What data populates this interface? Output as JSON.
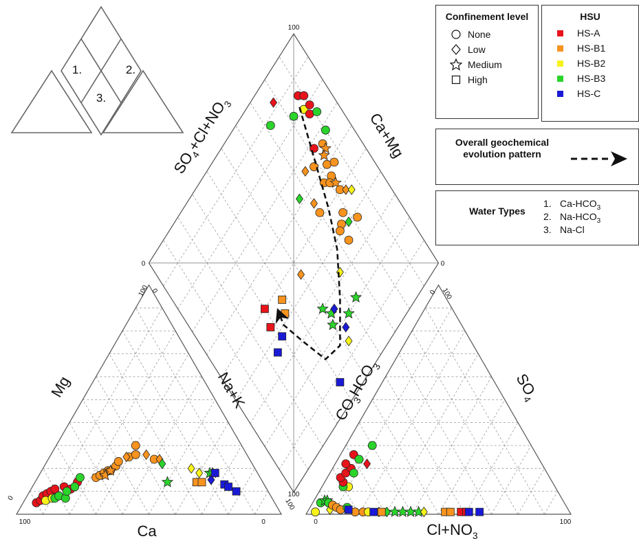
{
  "ternary_labels": {
    "cation_left": "Mg",
    "cation_bottom": "Ca",
    "cation_right": "Na+K",
    "anion_left": "CO3HCO3",
    "anion_bottom": "Cl+NO3",
    "anion_right": "SO4",
    "diamond_left": "SO4+Cl+NO3",
    "diamond_right": "Ca+Mg",
    "tick_100": "100",
    "tick_0": "0"
  },
  "legend": {
    "confinement": {
      "title": "Confinement level",
      "items": [
        {
          "label": "None",
          "marker": "circle"
        },
        {
          "label": "Low",
          "marker": "diamond"
        },
        {
          "label": "Medium",
          "marker": "star"
        },
        {
          "label": "High",
          "marker": "square"
        }
      ]
    },
    "hsu": {
      "title": "HSU",
      "items": [
        {
          "label": "HS-A",
          "color": "#e8141b"
        },
        {
          "label": "HS-B1",
          "color": "#f7931e"
        },
        {
          "label": "HS-B2",
          "color": "#f7f21a"
        },
        {
          "label": "HS-B3",
          "color": "#2bd42b"
        },
        {
          "label": "HS-C",
          "color": "#1a1ad6"
        }
      ]
    },
    "evolution": {
      "label": "Overall geochemical evolution pattern"
    },
    "water_types": {
      "title": "Water Types",
      "items": [
        {
          "num": "1.",
          "label": "Ca-HCO3"
        },
        {
          "num": "2.",
          "label": "Na-HCO3"
        },
        {
          "num": "3.",
          "label": "Na-Cl"
        }
      ]
    }
  },
  "inset_labels": [
    "1.",
    "2.",
    "3."
  ],
  "chart_data": {
    "type": "scatter",
    "subtype": "piper_diagram",
    "marker_colors": {
      "A": "#e8141b",
      "B1": "#f7931e",
      "B2": "#f7f21a",
      "B3": "#2bd42b",
      "C": "#1a1ad6"
    },
    "cation_points": [
      {
        "ca": 90,
        "na": 5,
        "hsu": "A",
        "m": "circle"
      },
      {
        "ca": 88,
        "na": 6,
        "hsu": "A",
        "m": "circle"
      },
      {
        "ca": 86,
        "na": 6,
        "hsu": "A",
        "m": "circle"
      },
      {
        "ca": 84,
        "na": 7,
        "hsu": "A",
        "m": "circle"
      },
      {
        "ca": 82,
        "na": 8,
        "hsu": "A",
        "m": "circle"
      },
      {
        "ca": 80,
        "na": 9,
        "hsu": "A",
        "m": "circle"
      },
      {
        "ca": 76,
        "na": 12,
        "hsu": "A",
        "m": "circle"
      },
      {
        "ca": 74,
        "na": 15,
        "hsu": "A",
        "m": "circle"
      },
      {
        "ca": 70,
        "na": 16,
        "hsu": "A",
        "m": "circle"
      },
      {
        "ca": 86,
        "na": 8,
        "hsu": "B2",
        "m": "circle"
      },
      {
        "ca": 83,
        "na": 10,
        "hsu": "B2",
        "m": "circle"
      },
      {
        "ca": 82,
        "na": 11,
        "hsu": "B3",
        "m": "circle"
      },
      {
        "ca": 80,
        "na": 12,
        "hsu": "B3",
        "m": "circle"
      },
      {
        "ca": 78,
        "na": 15,
        "hsu": "B3",
        "m": "circle"
      },
      {
        "ca": 76,
        "na": 14,
        "hsu": "B3",
        "m": "circle"
      },
      {
        "ca": 72,
        "na": 16,
        "hsu": "B3",
        "m": "circle"
      },
      {
        "ca": 68,
        "na": 16,
        "hsu": "B3",
        "m": "circle"
      },
      {
        "ca": 62,
        "na": 22,
        "hsu": "B1",
        "m": "circle"
      },
      {
        "ca": 60,
        "na": 23,
        "hsu": "B1",
        "m": "circle"
      },
      {
        "ca": 58,
        "na": 24,
        "hsu": "B1",
        "m": "circle"
      },
      {
        "ca": 56,
        "na": 25,
        "hsu": "B1",
        "m": "circle"
      },
      {
        "ca": 55,
        "na": 26,
        "hsu": "B1",
        "m": "circle"
      },
      {
        "ca": 52,
        "na": 27,
        "hsu": "B1",
        "m": "circle"
      },
      {
        "ca": 50,
        "na": 27,
        "hsu": "B1",
        "m": "circle"
      },
      {
        "ca": 45,
        "na": 30,
        "hsu": "B1",
        "m": "circle"
      },
      {
        "ca": 42,
        "na": 32,
        "hsu": "B1",
        "m": "circle"
      },
      {
        "ca": 40,
        "na": 30,
        "hsu": "B1",
        "m": "circle"
      },
      {
        "ca": 36,
        "na": 40,
        "hsu": "B1",
        "m": "circle"
      },
      {
        "ca": 58,
        "na": 25,
        "hsu": "B1",
        "m": "star"
      },
      {
        "ca": 55,
        "na": 26,
        "hsu": "B1",
        "m": "star"
      },
      {
        "ca": 46,
        "na": 29,
        "hsu": "B1",
        "m": "diamond"
      },
      {
        "ca": 38,
        "na": 36,
        "hsu": "B1",
        "m": "diamond"
      },
      {
        "ca": 34,
        "na": 42,
        "hsu": "B1",
        "m": "diamond"
      },
      {
        "ca": 36,
        "na": 50,
        "hsu": "B3",
        "m": "star"
      },
      {
        "ca": 34,
        "na": 44,
        "hsu": "B3",
        "m": "diamond"
      },
      {
        "ca": 24,
        "na": 56,
        "hsu": "B2",
        "m": "diamond"
      },
      {
        "ca": 22,
        "na": 60,
        "hsu": "B2",
        "m": "diamond"
      },
      {
        "ca": 25,
        "na": 61,
        "hsu": "B1",
        "m": "square"
      },
      {
        "ca": 23,
        "na": 63,
        "hsu": "B1",
        "m": "square"
      },
      {
        "ca": 18,
        "na": 64,
        "hsu": "B3",
        "m": "star"
      },
      {
        "ca": 17,
        "na": 65,
        "hsu": "B3",
        "m": "star"
      },
      {
        "ca": 19,
        "na": 66,
        "hsu": "C",
        "m": "diamond"
      },
      {
        "ca": 16,
        "na": 66,
        "hsu": "C",
        "m": "square"
      },
      {
        "ca": 15,
        "na": 72,
        "hsu": "C",
        "m": "square"
      },
      {
        "ca": 14,
        "na": 74,
        "hsu": "C",
        "m": "square"
      },
      {
        "ca": 12,
        "na": 78,
        "hsu": "C",
        "m": "square"
      }
    ],
    "anion_points": [
      {
        "cl": 8,
        "so4": 2,
        "hsu": "B2",
        "m": "diamond"
      },
      {
        "cl": 3,
        "so4": 1,
        "hsu": "B2",
        "m": "circle"
      },
      {
        "cl": 3,
        "so4": 5,
        "hsu": "B3",
        "m": "circle"
      },
      {
        "cl": 4,
        "so4": 6,
        "hsu": "B3",
        "m": "star"
      },
      {
        "cl": 5,
        "so4": 6,
        "hsu": "B3",
        "m": "star"
      },
      {
        "cl": 6,
        "so4": 5,
        "hsu": "B3",
        "m": "circle"
      },
      {
        "cl": 8,
        "so4": 4,
        "hsu": "B1",
        "m": "circle"
      },
      {
        "cl": 10,
        "so4": 3,
        "hsu": "B1",
        "m": "circle"
      },
      {
        "cl": 12,
        "so4": 2,
        "hsu": "B1",
        "m": "circle"
      },
      {
        "cl": 10,
        "so4": 12,
        "hsu": "B2",
        "m": "circle"
      },
      {
        "cl": 8,
        "so4": 12,
        "hsu": "B3",
        "m": "circle"
      },
      {
        "cl": 7,
        "so4": 14,
        "hsu": "A",
        "m": "circle"
      },
      {
        "cl": 5,
        "so4": 16,
        "hsu": "A",
        "m": "circle"
      },
      {
        "cl": 6,
        "so4": 18,
        "hsu": "A",
        "m": "circle"
      },
      {
        "cl": 7,
        "so4": 20,
        "hsu": "A",
        "m": "circle"
      },
      {
        "cl": 4,
        "so4": 22,
        "hsu": "A",
        "m": "circle"
      },
      {
        "cl": 5,
        "so4": 26,
        "hsu": "A",
        "m": "circle"
      },
      {
        "cl": 12,
        "so4": 22,
        "hsu": "A",
        "m": "diamond"
      },
      {
        "cl": 8,
        "so4": 24,
        "hsu": "B3",
        "m": "circle"
      },
      {
        "cl": 10,
        "so4": 30,
        "hsu": "B3",
        "m": "circle"
      },
      {
        "cl": 9,
        "so4": 18,
        "hsu": "B3",
        "m": "circle"
      },
      {
        "cl": 14,
        "so4": 3,
        "hsu": "B3",
        "m": "circle"
      },
      {
        "cl": 18,
        "so4": 1,
        "hsu": "B1",
        "m": "circle"
      },
      {
        "cl": 21,
        "so4": 1,
        "hsu": "B1",
        "m": "circle"
      },
      {
        "cl": 23,
        "so4": 1,
        "hsu": "B2",
        "m": "circle"
      },
      {
        "cl": 27,
        "so4": 1,
        "hsu": "C",
        "m": "diamond"
      },
      {
        "cl": 30,
        "so4": 1,
        "hsu": "B3",
        "m": "diamond"
      },
      {
        "cl": 33,
        "so4": 1,
        "hsu": "B3",
        "m": "star"
      },
      {
        "cl": 36,
        "so4": 1,
        "hsu": "B3",
        "m": "star"
      },
      {
        "cl": 39,
        "so4": 1,
        "hsu": "B3",
        "m": "star"
      },
      {
        "cl": 42,
        "so4": 1,
        "hsu": "B3",
        "m": "star"
      },
      {
        "cl": 44,
        "so4": 1,
        "hsu": "B2",
        "m": "diamond"
      },
      {
        "cl": 52,
        "so4": 1,
        "hsu": "B1",
        "m": "square"
      },
      {
        "cl": 54,
        "so4": 1,
        "hsu": "B1",
        "m": "square"
      },
      {
        "cl": 58,
        "so4": 1,
        "hsu": "A",
        "m": "square"
      },
      {
        "cl": 60,
        "so4": 1,
        "hsu": "A",
        "m": "square"
      },
      {
        "cl": 61,
        "so4": 1,
        "hsu": "C",
        "m": "square"
      },
      {
        "cl": 65,
        "so4": 1,
        "hsu": "C",
        "m": "square"
      },
      {
        "cl": 25,
        "so4": 1,
        "hsu": "C",
        "m": "square"
      },
      {
        "cl": 15,
        "so4": 2,
        "hsu": "C",
        "m": "square"
      },
      {
        "cl": 28,
        "so4": 1,
        "hsu": "B1",
        "m": "square"
      }
    ],
    "diamond_points": [
      {
        "anion": 85,
        "cation": 88,
        "hsu": "A",
        "m": "circle"
      },
      {
        "anion": 83,
        "cation": 90,
        "hsu": "A",
        "m": "circle"
      },
      {
        "anion": 80,
        "cation": 87,
        "hsu": "B2",
        "m": "circle"
      },
      {
        "anion": 79,
        "cation": 90,
        "hsu": "A",
        "m": "circle"
      },
      {
        "anion": 77,
        "cation": 88,
        "hsu": "A",
        "m": "circle"
      },
      {
        "anion": 75,
        "cation": 91,
        "hsu": "B3",
        "m": "circle"
      },
      {
        "anion": 82,
        "cation": 82,
        "hsu": "B3",
        "m": "circle"
      },
      {
        "anion": 92,
        "cation": 78,
        "hsu": "A",
        "m": "diamond"
      },
      {
        "anion": 88,
        "cation": 72,
        "hsu": "B3",
        "m": "circle"
      },
      {
        "anion": 68,
        "cation": 90,
        "hsu": "B3",
        "m": "circle"
      },
      {
        "anion": 68,
        "cation": 82,
        "hsu": "A",
        "m": "circle"
      },
      {
        "anion": 66,
        "cation": 86,
        "hsu": "B1",
        "m": "circle"
      },
      {
        "anion": 64,
        "cation": 86,
        "hsu": "B1",
        "m": "star"
      },
      {
        "anion": 63,
        "cation": 84,
        "hsu": "B1",
        "m": "star"
      },
      {
        "anion": 64,
        "cation": 78,
        "hsu": "B1",
        "m": "circle"
      },
      {
        "anion": 66,
        "cation": 74,
        "hsu": "B1",
        "m": "diamond"
      },
      {
        "anion": 60,
        "cation": 83,
        "hsu": "B1",
        "m": "circle"
      },
      {
        "anion": 58,
        "cation": 86,
        "hsu": "B1",
        "m": "circle"
      },
      {
        "anion": 56,
        "cation": 82,
        "hsu": "B1",
        "m": "circle"
      },
      {
        "anion": 57,
        "cation": 78,
        "hsu": "B1",
        "m": "circle"
      },
      {
        "anion": 55,
        "cation": 80,
        "hsu": "B1",
        "m": "circle"
      },
      {
        "anion": 53,
        "cation": 82,
        "hsu": "B1",
        "m": "star"
      },
      {
        "anion": 50,
        "cation": 82,
        "hsu": "B1",
        "m": "circle"
      },
      {
        "anion": 48,
        "cation": 84,
        "hsu": "B1",
        "m": "diamond"
      },
      {
        "anion": 46,
        "cation": 86,
        "hsu": "B2",
        "m": "diamond"
      },
      {
        "anion": 56,
        "cation": 70,
        "hsu": "B1",
        "m": "diamond"
      },
      {
        "anion": 52,
        "cation": 70,
        "hsu": "B1",
        "m": "circle"
      },
      {
        "anion": 44,
        "cation": 78,
        "hsu": "B1",
        "m": "circle"
      },
      {
        "anion": 42,
        "cation": 75,
        "hsu": "B1",
        "m": "circle"
      },
      {
        "anion": 41,
        "cation": 73,
        "hsu": "B1",
        "m": "circle"
      },
      {
        "anion": 40,
        "cation": 78,
        "hsu": "B3",
        "m": "diamond"
      },
      {
        "anion": 38,
        "cation": 82,
        "hsu": "B1",
        "m": "circle"
      },
      {
        "anion": 36,
        "cation": 74,
        "hsu": "B1",
        "m": "circle"
      },
      {
        "anion": 32,
        "cation": 64,
        "hsu": "B2",
        "m": "diamond"
      },
      {
        "anion": 45,
        "cation": 50,
        "hsu": "B1",
        "m": "diamond"
      },
      {
        "anion": 30,
        "cation": 50,
        "hsu": "B3",
        "m": "star"
      },
      {
        "anion": 26,
        "cation": 52,
        "hsu": "B3",
        "m": "star"
      },
      {
        "anion": 26,
        "cation": 54,
        "hsu": "C",
        "m": "diamond"
      },
      {
        "anion": 23,
        "cation": 50,
        "hsu": "B3",
        "m": "star"
      },
      {
        "anion": 20,
        "cation": 58,
        "hsu": "B3",
        "m": "star"
      },
      {
        "anion": 18,
        "cation": 54,
        "hsu": "C",
        "m": "diamond"
      },
      {
        "anion": 21,
        "cation": 64,
        "hsu": "B3",
        "m": "star"
      },
      {
        "anion": 14,
        "cation": 52,
        "hsu": "B2",
        "m": "diamond"
      },
      {
        "anion": 46,
        "cation": 38,
        "hsu": "B1",
        "m": "square"
      },
      {
        "anion": 50,
        "cation": 30,
        "hsu": "A",
        "m": "square"
      },
      {
        "anion": 44,
        "cation": 28,
        "hsu": "A",
        "m": "square"
      },
      {
        "anion": 42,
        "cation": 36,
        "hsu": "B1",
        "m": "square"
      },
      {
        "anion": 38,
        "cation": 30,
        "hsu": "C",
        "m": "square"
      },
      {
        "anion": 36,
        "cation": 25,
        "hsu": "C",
        "m": "square"
      },
      {
        "anion": 8,
        "cation": 40,
        "hsu": "C",
        "m": "square"
      },
      {
        "anion": 62,
        "cation": 66,
        "hsu": "B3",
        "m": "diamond"
      }
    ],
    "evolution_path": [
      {
        "anion": 82,
        "cation": 86
      },
      {
        "anion": 66,
        "cation": 80
      },
      {
        "anion": 50,
        "cation": 74
      },
      {
        "anion": 38,
        "cation": 68
      },
      {
        "anion": 26,
        "cation": 58
      },
      {
        "anion": 16,
        "cation": 48
      },
      {
        "anion": 18,
        "cation": 40
      },
      {
        "anion": 30,
        "cation": 36
      },
      {
        "anion": 40,
        "cation": 33
      },
      {
        "anion": 44,
        "cation": 34
      }
    ]
  }
}
